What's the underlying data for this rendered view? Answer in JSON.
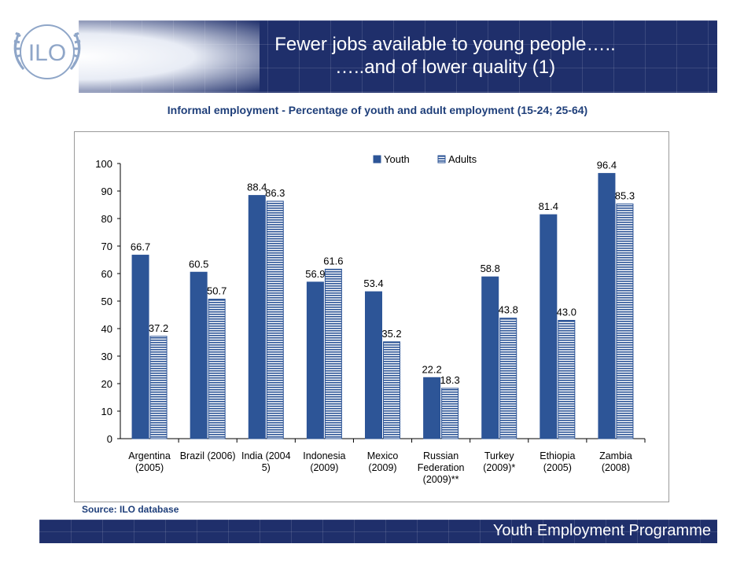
{
  "header": {
    "title_line1": "Fewer jobs available to young people…..",
    "title_line2": "…..and of lower quality (1)",
    "logo_text": "ILO"
  },
  "chart_data": {
    "type": "bar",
    "title": "Informal employment  - Percentage of youth and adult employment (15-24; 25-64)",
    "categories": [
      [
        "Argentina",
        "(2005)"
      ],
      [
        "Brazil (2006)"
      ],
      [
        "India (2004",
        "5)"
      ],
      [
        "Indonesia",
        "(2009)"
      ],
      [
        "Mexico",
        "(2009)"
      ],
      [
        "Russian",
        "Federation",
        "(2009)**"
      ],
      [
        "Turkey",
        "(2009)*"
      ],
      [
        "Ethiopia",
        "(2005)"
      ],
      [
        "Zambia",
        "(2008)"
      ]
    ],
    "series": [
      {
        "name": "Youth",
        "values": [
          66.7,
          60.5,
          88.4,
          56.9,
          53.4,
          22.2,
          58.8,
          81.4,
          96.4
        ],
        "color": "#2d5597"
      },
      {
        "name": "Adults",
        "values": [
          37.2,
          50.7,
          86.3,
          61.6,
          35.2,
          18.3,
          43.8,
          43.0,
          85.3
        ],
        "color": "#2d5597",
        "pattern": "horizontal-stripes"
      }
    ],
    "yticks": [
      "0",
      "10",
      "20",
      "30",
      "40",
      "50",
      "60",
      "70",
      "80",
      "90",
      "100"
    ],
    "ylim": [
      0,
      100
    ],
    "legend_position": "top-center",
    "grid": false
  },
  "source": "Source:  ILO database",
  "footer": {
    "label": "Youth Employment Programme"
  }
}
